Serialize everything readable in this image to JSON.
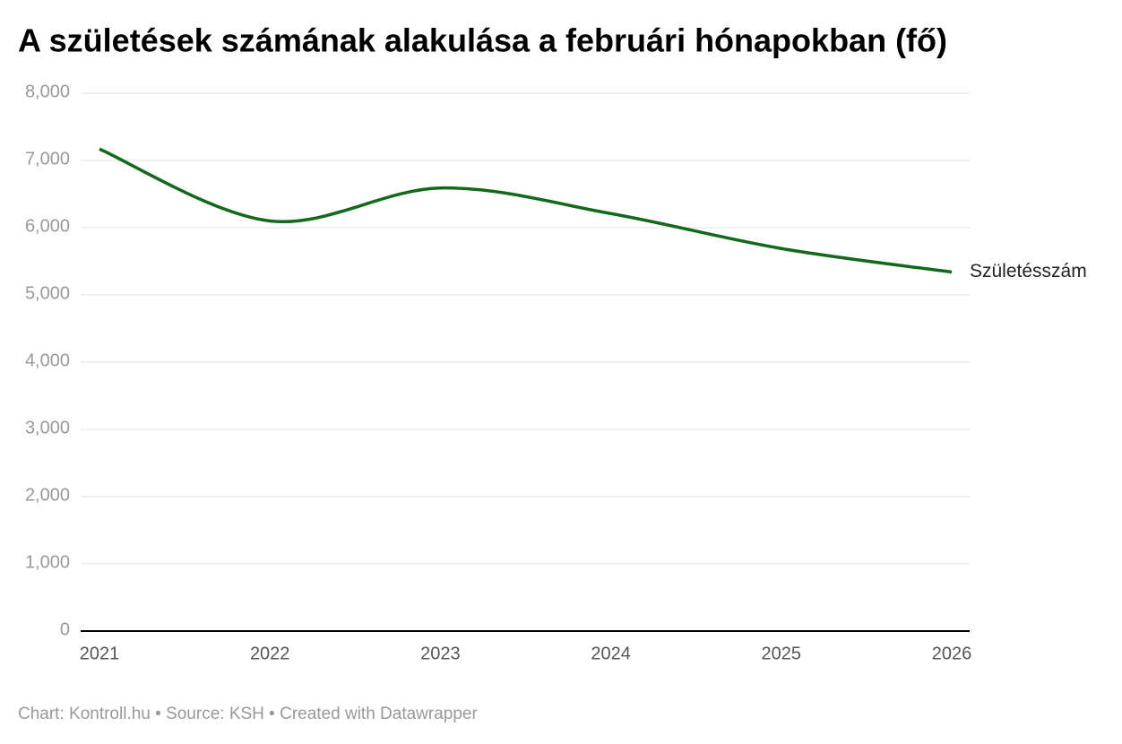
{
  "chart_data": {
    "type": "line",
    "title": "A születések számának alakulása a februári hónapokban (fő)",
    "x": [
      2021,
      2022,
      2023,
      2024,
      2025,
      2026
    ],
    "series": [
      {
        "name": "Születésszám",
        "color": "#12691b",
        "values": [
          7170,
          6100,
          6590,
          6210,
          5690,
          5340
        ]
      }
    ],
    "xlim": [
      2021,
      2026
    ],
    "xticks": [
      2021,
      2022,
      2023,
      2024,
      2025,
      2026
    ],
    "ylim": [
      0,
      8000
    ],
    "yticks": [
      0,
      {
        "value": 1000,
        "label": "1,000"
      },
      {
        "value": 2000,
        "label": "2,000"
      },
      {
        "value": 3000,
        "label": "3,000"
      },
      {
        "value": 4000,
        "label": "4,000"
      },
      {
        "value": 5000,
        "label": "5,000"
      },
      {
        "value": 6000,
        "label": "6,000"
      },
      {
        "value": 7000,
        "label": "7,000"
      },
      {
        "value": 8000,
        "label": "8,000"
      }
    ],
    "grid": true,
    "smooth": true,
    "footer": "Chart: Kontroll.hu • Source: KSH • Created with Datawrapper"
  }
}
